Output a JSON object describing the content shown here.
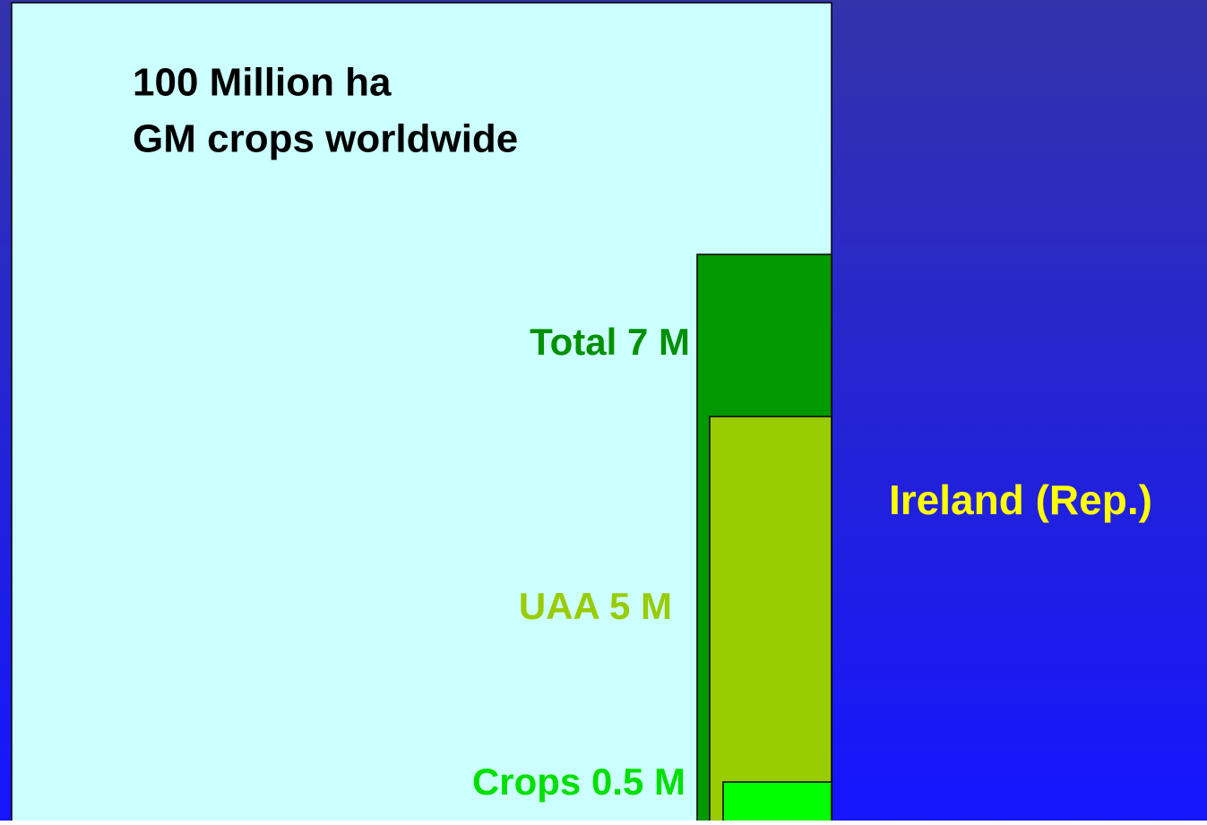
{
  "heading": {
    "line1": "100 Million ha",
    "line2": "GM crops worldwide"
  },
  "boxes": [
    {
      "label": "Total 7 M"
    },
    {
      "label": "UAA 5 M"
    },
    {
      "label": "Crops 0.5 M"
    }
  ],
  "country": "Ireland (Rep.)"
}
